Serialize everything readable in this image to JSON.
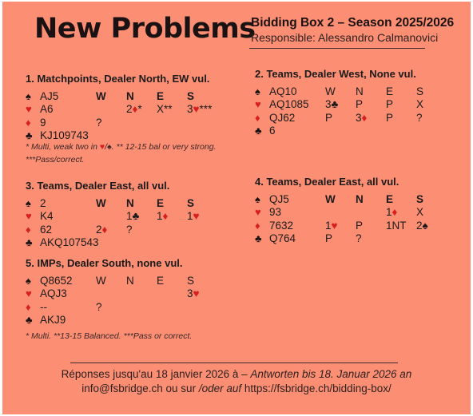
{
  "header": {
    "title": "New Problems",
    "subtitle": "Bidding Box 2 – Season 2025/2026",
    "responsible": "Responsible: Alessandro Calmanovici"
  },
  "colors": {
    "background": "#fc8f73",
    "red_suit": "#d81e1e",
    "black_suit": "#1a1212"
  },
  "suits": {
    "spade": "♠",
    "heart": "♥",
    "diamond": "♦",
    "club": "♣"
  },
  "problems": [
    {
      "title": "1.  Matchpoints, Dealer North, EW vul.",
      "hand": [
        "AJ5",
        "A6",
        "9",
        "KJ109743"
      ],
      "auction": [
        [
          "W",
          "N",
          "E",
          "S"
        ],
        [
          "",
          "2♦*",
          "X**",
          "3♥***"
        ],
        [
          "?",
          "",
          "",
          ""
        ]
      ],
      "note_lines": [
        "* Multi, weak two in ♥/♠. ** 12-15 bal or very strong.",
        "***Pass/correct."
      ]
    },
    {
      "title": "2.  Teams, Dealer West, None vul.",
      "hand": [
        "AQ10",
        "AQ1085",
        "QJ62",
        "6"
      ],
      "auction": [
        [
          "W",
          "N",
          "E",
          "S"
        ],
        [
          "3♣",
          "P",
          "P",
          "X"
        ],
        [
          "P",
          "3♦",
          "P",
          "?"
        ]
      ],
      "note_lines": []
    },
    {
      "title": "3.  Teams, Dealer East, all vul.",
      "hand": [
        "2",
        "K4",
        "62",
        "AKQ107543"
      ],
      "auction": [
        [
          "W",
          "N",
          "E",
          "S"
        ],
        [
          "",
          "1♣",
          "1♦",
          "1♥"
        ],
        [
          "2♦",
          "?",
          "",
          ""
        ]
      ],
      "note_lines": []
    },
    {
      "title": "4.  Teams, Dealer East, all vul.",
      "hand": [
        "QJ5",
        "93",
        "7632",
        "Q764"
      ],
      "auction": [
        [
          "W",
          "N",
          "E",
          "S"
        ],
        [
          "",
          "",
          "1♦",
          "X"
        ],
        [
          "1♥",
          "P",
          "1NT",
          "2♠"
        ],
        [
          "P",
          "?",
          "",
          ""
        ]
      ],
      "note_lines": []
    },
    {
      "title": "5.  IMPs, Dealer South, none vul.",
      "hand": [
        "Q8652",
        "AQJ3",
        "--",
        "AKJ9"
      ],
      "auction": [
        [
          "W",
          "N",
          "E",
          "S"
        ],
        [
          "",
          "",
          "",
          "3♥"
        ],
        [
          "?",
          "",
          "",
          ""
        ]
      ],
      "note_lines": [
        "* Multi. **13-15 Balanced. ***Pass or correct."
      ]
    }
  ],
  "footer": {
    "line1_fr": "Réponses jusqu'au 18 janvier 2026 à – ",
    "line1_de": "Antworten bis 18. Januar 2026 an",
    "line2_a": "info@fsbridge.ch ou sur ",
    "line2_de": "/oder auf",
    "line2_url": " https://fsbridge.ch/bidding-box/"
  }
}
